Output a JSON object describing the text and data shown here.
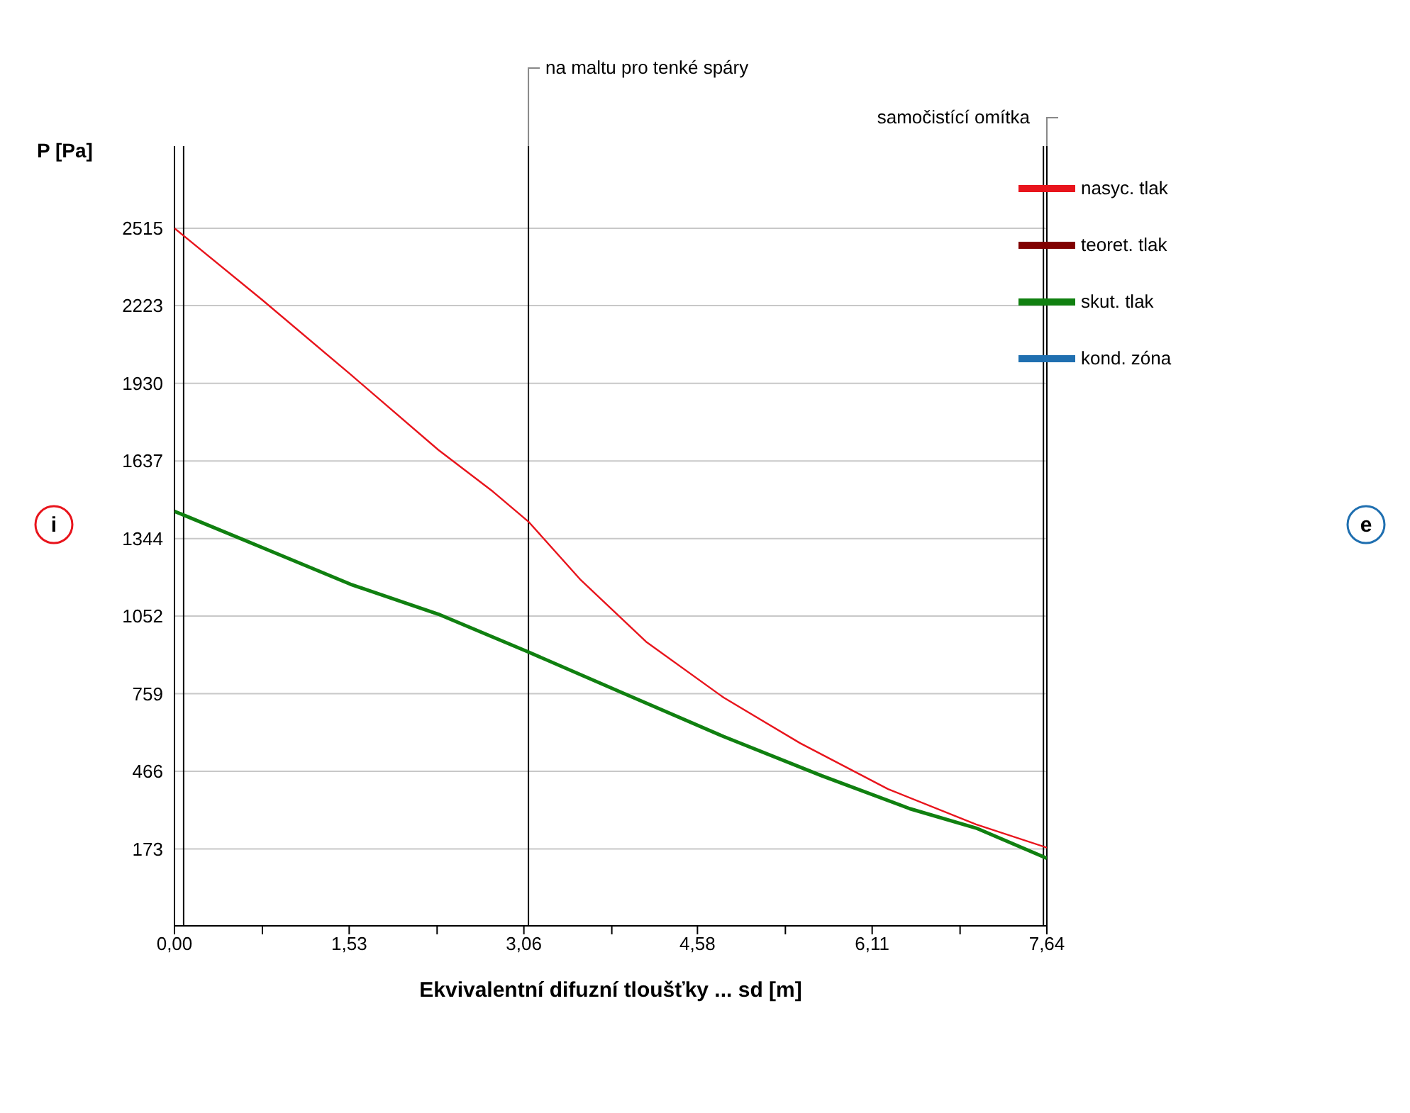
{
  "chart_data": {
    "type": "line",
    "xlabel": "Ekvivalentní difuzní tloušťky ... sd [m]",
    "ylabel": "P [Pa]",
    "xlim": [
      0,
      7.64
    ],
    "ylim": [
      -117,
      2825
    ],
    "xticks": [
      {
        "value": 0,
        "label": "0,00"
      },
      {
        "value": 0.77,
        "label": null
      },
      {
        "value": 1.53,
        "label": "1,53"
      },
      {
        "value": 2.3,
        "label": null
      },
      {
        "value": 3.06,
        "label": "3,06"
      },
      {
        "value": 3.83,
        "label": null
      },
      {
        "value": 4.58,
        "label": "4,58"
      },
      {
        "value": 5.35,
        "label": null
      },
      {
        "value": 6.11,
        "label": "6,11"
      },
      {
        "value": 6.88,
        "label": null
      },
      {
        "value": 7.64,
        "label": "7,64"
      }
    ],
    "yticks": [
      173,
      466,
      759,
      1052,
      1344,
      1637,
      1930,
      2223,
      2515
    ],
    "grid": "y",
    "legend": "top right",
    "marker": "none",
    "line_style": "solid",
    "series": [
      {
        "name": "nasyc. tlak",
        "color": "#e8141c",
        "x": [
          0,
          0.77,
          1.54,
          2.31,
          2.79,
          3.1,
          3.56,
          4.13,
          4.81,
          5.48,
          6.25,
          7.02,
          7.64
        ],
        "values": [
          2515,
          2244,
          1964,
          1679,
          1521,
          1408,
          1187,
          955,
          744,
          572,
          399,
          266,
          178
        ]
      },
      {
        "name": "teoret. tlak",
        "color": "#800000"
      },
      {
        "name": "skut. tlak",
        "color": "#108010",
        "x": [
          0,
          0.77,
          1.54,
          2.31,
          3.1,
          3.94,
          4.81,
          5.67,
          6.44,
          7.02,
          7.64
        ],
        "values": [
          1447,
          1310,
          1172,
          1059,
          916,
          759,
          597,
          449,
          325,
          252,
          138
        ]
      },
      {
        "name": "kond. zóna",
        "color": "#1f6fb0"
      }
    ],
    "ref_lines": [
      {
        "axis": "x",
        "value": 0,
        "label": null,
        "color": "#000000"
      },
      {
        "axis": "x",
        "value": 0.08,
        "label": null,
        "color": "#000000"
      },
      {
        "axis": "x",
        "value": 3.1,
        "label": "na maltu pro tenké spáry",
        "color": "#000000"
      },
      {
        "axis": "x",
        "value": 7.61,
        "label": null,
        "color": "#000000"
      },
      {
        "axis": "x",
        "value": 7.64,
        "label": "samočistící omítka",
        "color": "#000000"
      }
    ],
    "annotations": [
      "i",
      "e"
    ]
  }
}
